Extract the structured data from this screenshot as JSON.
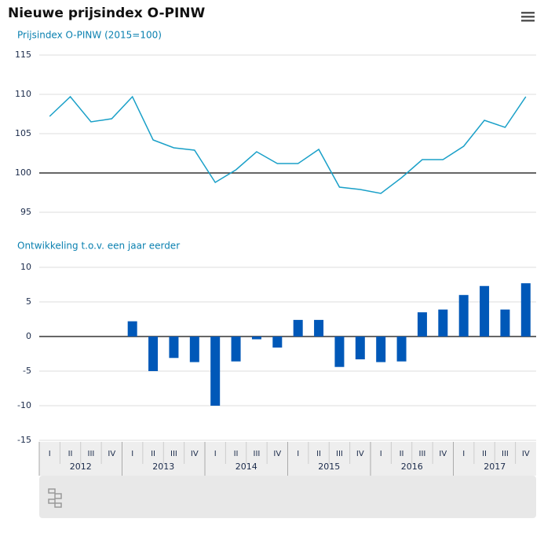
{
  "title": "Nieuwe prijsindex O-PINW",
  "chart_data": [
    {
      "type": "line",
      "title": "Prijsindex O-PINW (2015=100)",
      "color": "#1aa0c8",
      "values": [
        107.2,
        109.7,
        106.5,
        106.9,
        109.7,
        104.2,
        103.2,
        102.9,
        98.8,
        100.4,
        102.7,
        101.2,
        101.2,
        103.0,
        98.2,
        97.9,
        97.4,
        99.4,
        101.7,
        101.7,
        103.4,
        106.7,
        105.8,
        109.7
      ],
      "ylim": [
        95,
        115
      ],
      "yticks": [
        95,
        100,
        105,
        110,
        115
      ],
      "grid": true,
      "baseline": 100
    },
    {
      "type": "bar",
      "title": "Ontwikkeling t.o.v. een jaar eerder",
      "color": "#0058b8",
      "categories": [
        "I",
        "II",
        "III",
        "IV",
        "I",
        "II",
        "III",
        "IV",
        "I",
        "II",
        "III",
        "IV",
        "I",
        "II",
        "III",
        "IV",
        "I",
        "II",
        "III",
        "IV",
        "I",
        "II",
        "III",
        "IV"
      ],
      "years": [
        "2012",
        "2013",
        "2014",
        "2015",
        "2016",
        "2017"
      ],
      "values": [
        null,
        null,
        null,
        null,
        2.2,
        -5.0,
        -3.1,
        -3.7,
        -10.0,
        -3.6,
        -0.4,
        -1.6,
        2.4,
        2.4,
        -4.4,
        -3.3,
        -3.7,
        -3.6,
        3.5,
        3.9,
        6.0,
        7.3,
        3.9,
        7.7
      ],
      "ylim": [
        -15,
        10
      ],
      "yticks": [
        -15,
        -10,
        -5,
        0,
        5,
        10
      ],
      "grid": true,
      "baseline": 0
    }
  ]
}
